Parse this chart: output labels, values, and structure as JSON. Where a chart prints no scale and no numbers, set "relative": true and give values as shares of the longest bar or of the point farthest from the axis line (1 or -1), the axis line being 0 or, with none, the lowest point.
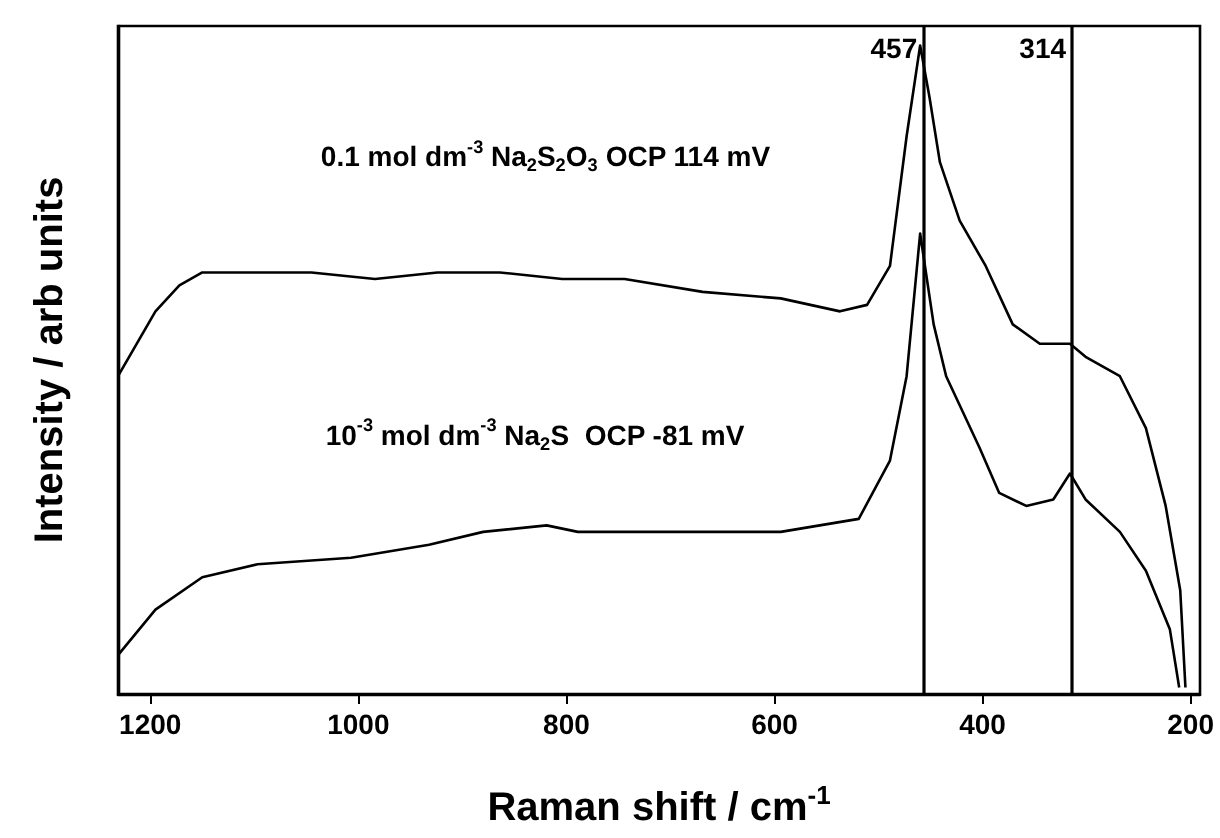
{
  "chart_data": {
    "type": "line",
    "xlabel": "Raman shift / cm$^{-1}$",
    "ylabel": "Intensity / arb units",
    "relative": true,
    "marker": "none",
    "legend": false,
    "grid": false,
    "xlim": [
      1231,
      191
    ],
    "xticks": [
      1200,
      1000,
      800,
      600,
      400,
      200
    ],
    "ref_lines": [
      {
        "axis": "x",
        "value": 457,
        "label": "457",
        "color": "#000000"
      },
      {
        "axis": "x",
        "value": 314,
        "label": "314",
        "color": "#000000"
      }
    ],
    "series": [
      {
        "name": "0.1 mol dm$^{-3}$ Na$_{2}$S$_{2}$O$_{3}$ OCP 114 mV",
        "color": "#000000",
        "x": [
          1231,
          1195,
          1172,
          1150,
          1120,
          1045,
          984,
          924,
          864,
          804,
          744,
          669,
          594,
          537,
          511,
          489,
          473,
          460,
          451,
          441,
          422,
          397,
          371,
          345,
          316,
          301,
          268,
          243,
          224,
          210,
          205
        ],
        "values": [
          0.49,
          0.59,
          0.63,
          0.65,
          0.65,
          0.65,
          0.64,
          0.65,
          0.65,
          0.64,
          0.64,
          0.62,
          0.61,
          0.59,
          0.6,
          0.66,
          0.86,
          1.0,
          0.92,
          0.82,
          0.73,
          0.66,
          0.57,
          0.54,
          0.54,
          0.52,
          0.49,
          0.41,
          0.29,
          0.16,
          0.01
        ]
      },
      {
        "name": "10$^{-3}$ mol dm$^{-3}$ Na$_{2}$S  OCP -81 mV",
        "color": "#000000",
        "x": [
          1231,
          1195,
          1150,
          1097,
          1007,
          932,
          880,
          819,
          789,
          707,
          594,
          519,
          489,
          473,
          460,
          447,
          435,
          403,
          384,
          358,
          332,
          316,
          301,
          268,
          243,
          220,
          211
        ],
        "values": [
          0.06,
          0.13,
          0.18,
          0.2,
          0.21,
          0.23,
          0.25,
          0.26,
          0.25,
          0.25,
          0.25,
          0.27,
          0.36,
          0.49,
          0.71,
          0.57,
          0.49,
          0.38,
          0.31,
          0.29,
          0.3,
          0.34,
          0.3,
          0.25,
          0.19,
          0.1,
          0.01
        ]
      }
    ]
  }
}
